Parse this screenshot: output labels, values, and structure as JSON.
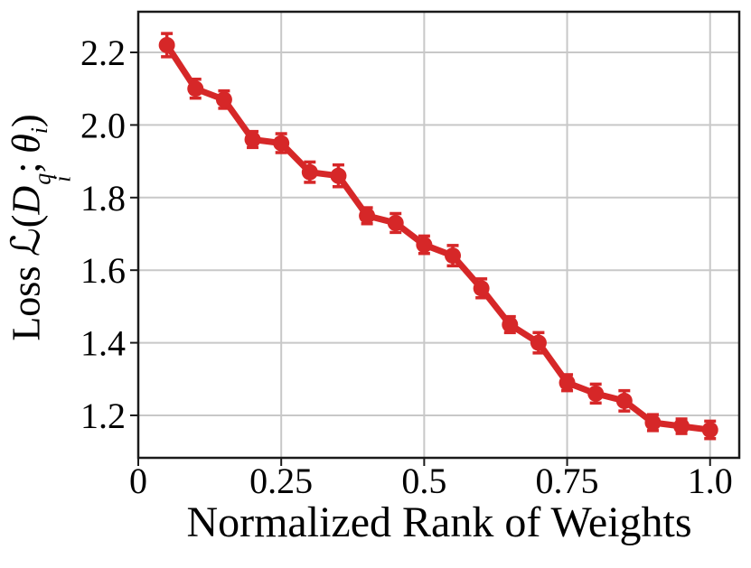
{
  "chart_data": {
    "type": "line",
    "title": "",
    "xlabel": "Normalized Rank of Weights",
    "ylabel": "Loss ℒ(𝒟_i^q; θ_i)",
    "ylabel_parts": {
      "loss": "Loss",
      "script_l": "ℒ",
      "open_paren": "(",
      "script_d": "D",
      "sup_q": "q",
      "sub_i": "i",
      "separator": ";",
      "theta": "θ",
      "theta_sub": "i",
      "close_paren": ")"
    },
    "x": [
      0.05,
      0.1,
      0.15,
      0.2,
      0.25,
      0.3,
      0.35,
      0.4,
      0.45,
      0.5,
      0.55,
      0.6,
      0.65,
      0.7,
      0.75,
      0.8,
      0.85,
      0.9,
      0.95,
      1.0
    ],
    "y": [
      2.22,
      2.1,
      2.07,
      1.96,
      1.95,
      1.87,
      1.86,
      1.75,
      1.73,
      1.67,
      1.64,
      1.55,
      1.45,
      1.4,
      1.29,
      1.26,
      1.24,
      1.18,
      1.17,
      1.16
    ],
    "yerr": [
      0.032,
      0.026,
      0.024,
      0.022,
      0.026,
      0.028,
      0.03,
      0.022,
      0.026,
      0.024,
      0.028,
      0.026,
      0.022,
      0.028,
      0.022,
      0.026,
      0.028,
      0.022,
      0.02,
      0.024
    ],
    "x_ticks": [
      0,
      0.25,
      0.5,
      0.75,
      1.0
    ],
    "x_tick_labels": [
      "0",
      "0.25",
      "0.5",
      "0.75",
      "1.0"
    ],
    "y_ticks": [
      1.2,
      1.4,
      1.6,
      1.8,
      2.0,
      2.2
    ],
    "y_tick_labels": [
      "1.2",
      "1.4",
      "1.6",
      "1.8",
      "2.0",
      "2.2"
    ],
    "xlim": [
      0,
      1.051
    ],
    "ylim": [
      1.083,
      2.312
    ],
    "grid": true,
    "legend_position": "none",
    "marker": "circle",
    "colors": {
      "line": "#d62728",
      "grid": "#c8c8c8",
      "spine": "#1a1a1a",
      "tick": "#1a1a1a",
      "text": "#000000",
      "background": "#ffffff"
    }
  }
}
